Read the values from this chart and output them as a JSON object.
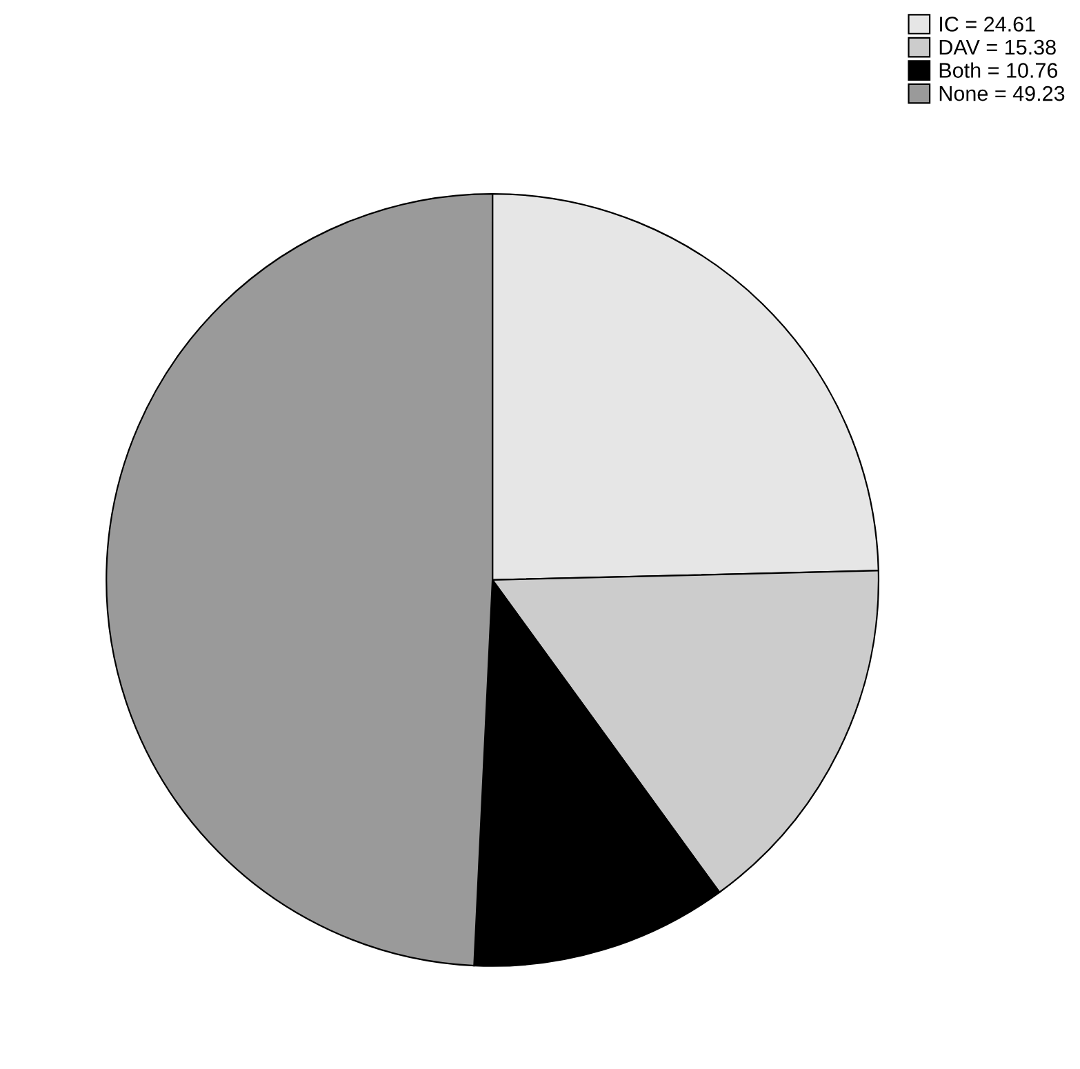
{
  "chart_data": {
    "type": "pie",
    "categories": [
      "IC = 24.61",
      "DAV = 15.38",
      "Both = 10.76",
      "None = 49.23"
    ],
    "values": [
      24.61,
      15.38,
      10.76,
      49.23
    ],
    "colors": [
      "#e6e6e6",
      "#cccccc",
      "#000000",
      "#9a9a9a"
    ],
    "legend": "top right"
  }
}
